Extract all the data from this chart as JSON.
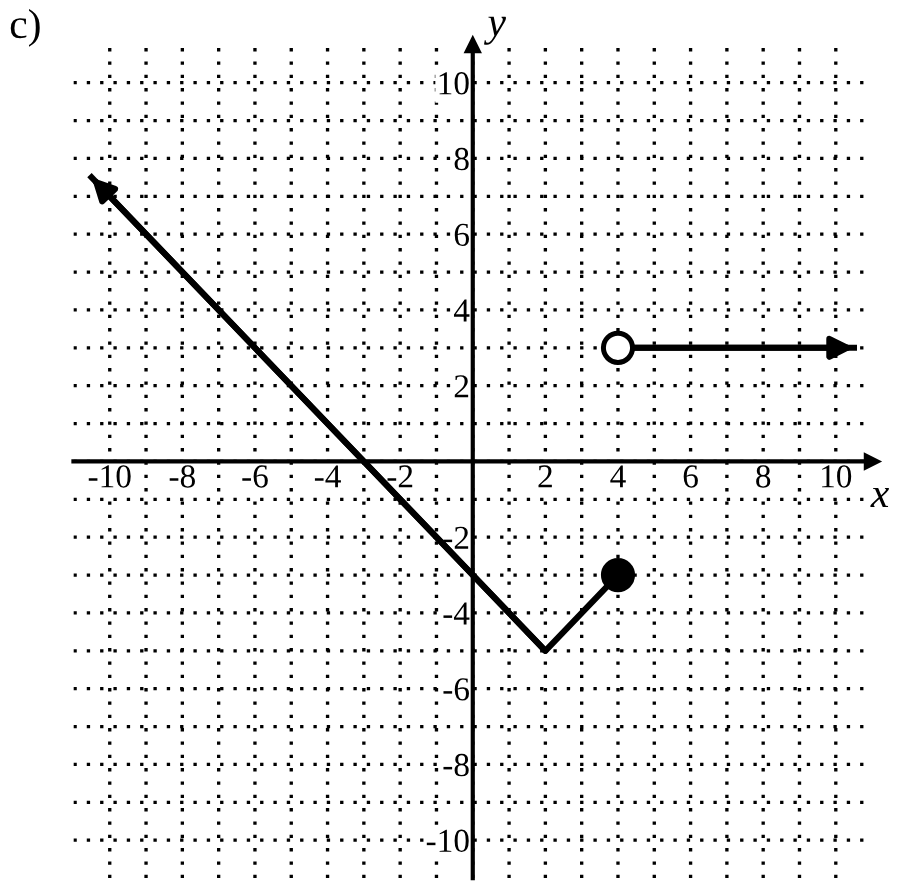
{
  "chart_data": {
    "type": "line",
    "xlabel": "x",
    "ylabel": "y",
    "annotations": [
      "c)"
    ],
    "xlim": [
      -11,
      11
    ],
    "ylim": [
      -11,
      11
    ],
    "xticks": [
      -10,
      {
        "value": -9,
        "label": null
      },
      -8,
      {
        "value": -7,
        "label": null
      },
      -6,
      {
        "value": -5,
        "label": null
      },
      -4,
      {
        "value": -3,
        "label": null
      },
      -2,
      {
        "value": -1,
        "label": null
      },
      {
        "value": 0,
        "label": null
      },
      {
        "value": 1,
        "label": null
      },
      2,
      {
        "value": 3,
        "label": null
      },
      4,
      {
        "value": 5,
        "label": null
      },
      6,
      {
        "value": 7,
        "label": null
      },
      8,
      {
        "value": 9,
        "label": null
      },
      10
    ],
    "yticks": [
      -10,
      {
        "value": -9,
        "label": null
      },
      -8,
      {
        "value": -7,
        "label": null
      },
      -6,
      {
        "value": -5,
        "label": null
      },
      -4,
      {
        "value": -3,
        "label": null
      },
      -2,
      {
        "value": -1,
        "label": null
      },
      {
        "value": 0,
        "label": null
      },
      {
        "value": 1,
        "label": null
      },
      2,
      {
        "value": 3,
        "label": null
      },
      4,
      {
        "value": 5,
        "label": null
      },
      6,
      {
        "value": 7,
        "label": null
      },
      8,
      {
        "value": 9,
        "label": null
      },
      10
    ],
    "grid": true,
    "line_style": "solid",
    "series": [
      {
        "color": "#000000",
        "x": [
          -10.5,
          2,
          4
        ],
        "values": [
          7.5,
          -5,
          -3
        ]
      },
      {
        "color": "#000000",
        "x": [
          4,
          10.5
        ],
        "values": [
          3,
          3
        ]
      },
      {
        "type": "scatter",
        "color": "#000000",
        "marker": "circle",
        "x": [
          4
        ],
        "values": [
          -3
        ]
      },
      {
        "type": "scatter",
        "color": "#ffffff",
        "marker": "circle",
        "x": [
          4
        ],
        "values": [
          3
        ]
      }
    ]
  }
}
